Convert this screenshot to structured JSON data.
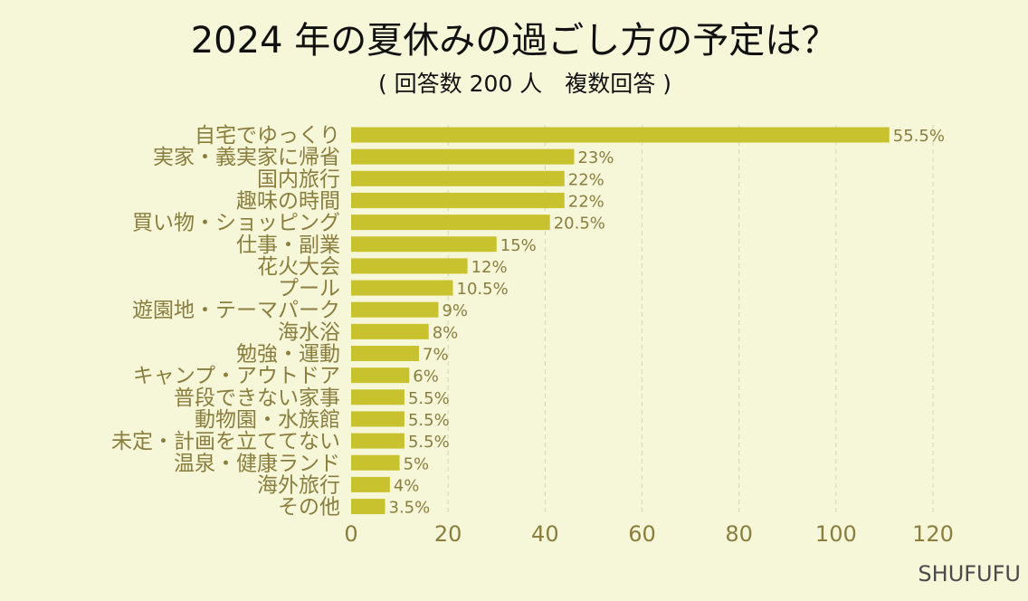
{
  "chart_data": {
    "type": "bar",
    "orientation": "horizontal",
    "title": "2024 年の夏休みの過ごし方の予定は？",
    "subtitle": "( 回答数 200 人　複数回答 )",
    "categories": [
      "自宅でゆっくり",
      "実家・義実家に帰省",
      "国内旅行",
      "趣味の時間",
      "買い物・ショッピング",
      "仕事・副業",
      "花火大会",
      "プール",
      "遊園地・テーマパーク",
      "海水浴",
      "勉強・運動",
      "キャンプ・アウトドア",
      "普段できない家事",
      "動物園・水族館",
      "未定・計画を立ててない",
      "温泉・健康ランド",
      "海外旅行",
      "その他"
    ],
    "values": [
      111,
      46,
      44,
      44,
      41,
      30,
      24,
      21,
      18,
      16,
      14,
      12,
      11,
      11,
      11,
      10,
      8,
      7
    ],
    "value_labels": [
      "55.5%",
      "23%",
      "22%",
      "22%",
      "20.5%",
      "15%",
      "12%",
      "10.5%",
      "9%",
      "8%",
      "7%",
      "6%",
      "5.5%",
      "5.5%",
      "5.5%",
      "5%",
      "4%",
      "3.5%"
    ],
    "xlim": [
      0,
      120
    ],
    "xticks": [
      0,
      20,
      40,
      60,
      80,
      100,
      120
    ],
    "grid": true,
    "bar_color": "#c9c22f",
    "background": "#f6f6d9",
    "label_color": "#8a7e3e"
  },
  "source": "SHUFUFU"
}
